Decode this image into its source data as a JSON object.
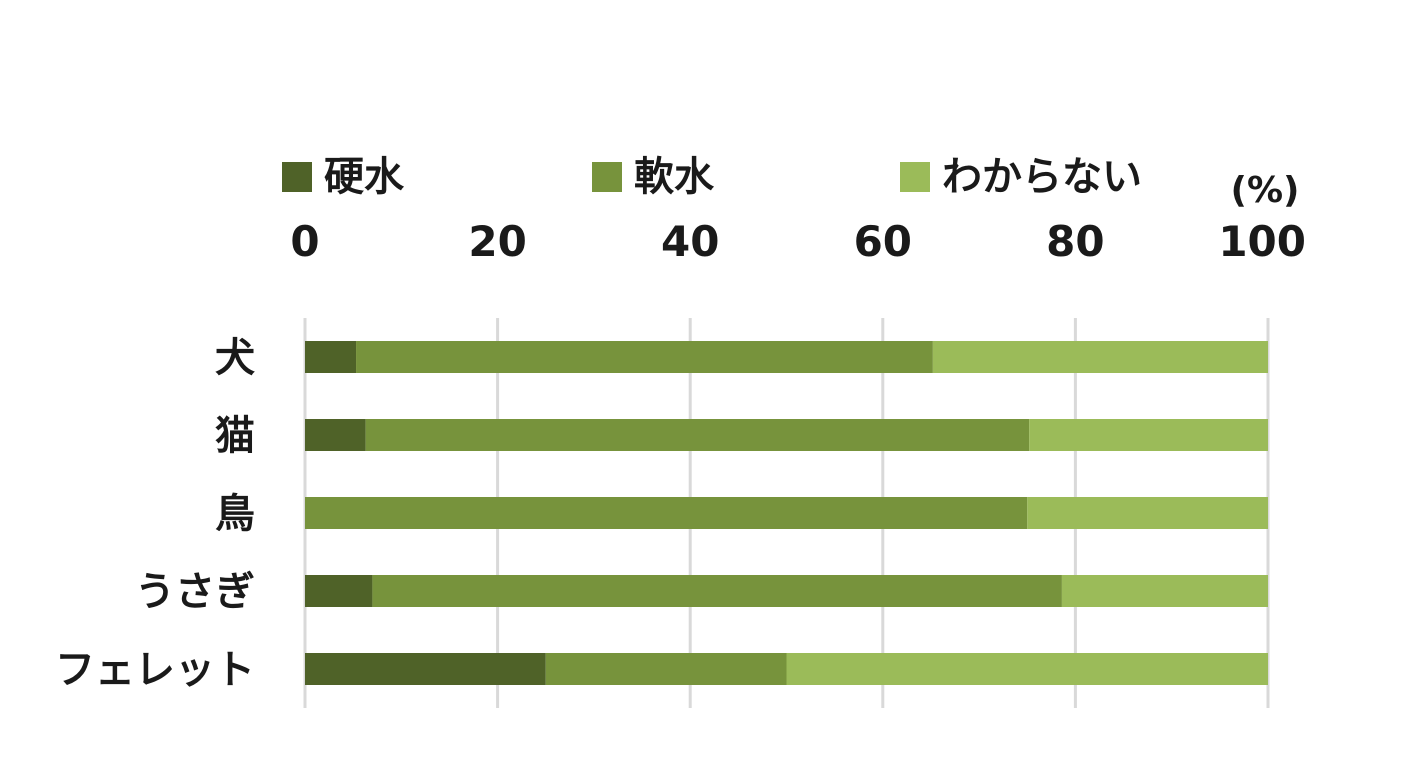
{
  "chart_data": {
    "type": "bar",
    "orientation": "horizontal",
    "stacked": true,
    "categories": [
      "犬",
      "猫",
      "鳥",
      "うさぎ",
      "フェレット"
    ],
    "series": [
      {
        "name": "硬水",
        "color": "#4f6228",
        "values": [
          5.3,
          6.3,
          0,
          7.0,
          25.0
        ]
      },
      {
        "name": "軟水",
        "color": "#77933c",
        "values": [
          59.9,
          68.9,
          75.0,
          71.6,
          25.0
        ]
      },
      {
        "name": "わからない",
        "color": "#9bbb59",
        "values": [
          34.8,
          24.8,
          25.0,
          21.4,
          50.0
        ]
      }
    ],
    "unit": "(%)",
    "xlim": [
      0,
      100
    ],
    "xticks": [
      "0",
      "20",
      "40",
      "60",
      "80",
      "100"
    ],
    "axis_position": "top",
    "legend_position": "top",
    "grid": true
  }
}
